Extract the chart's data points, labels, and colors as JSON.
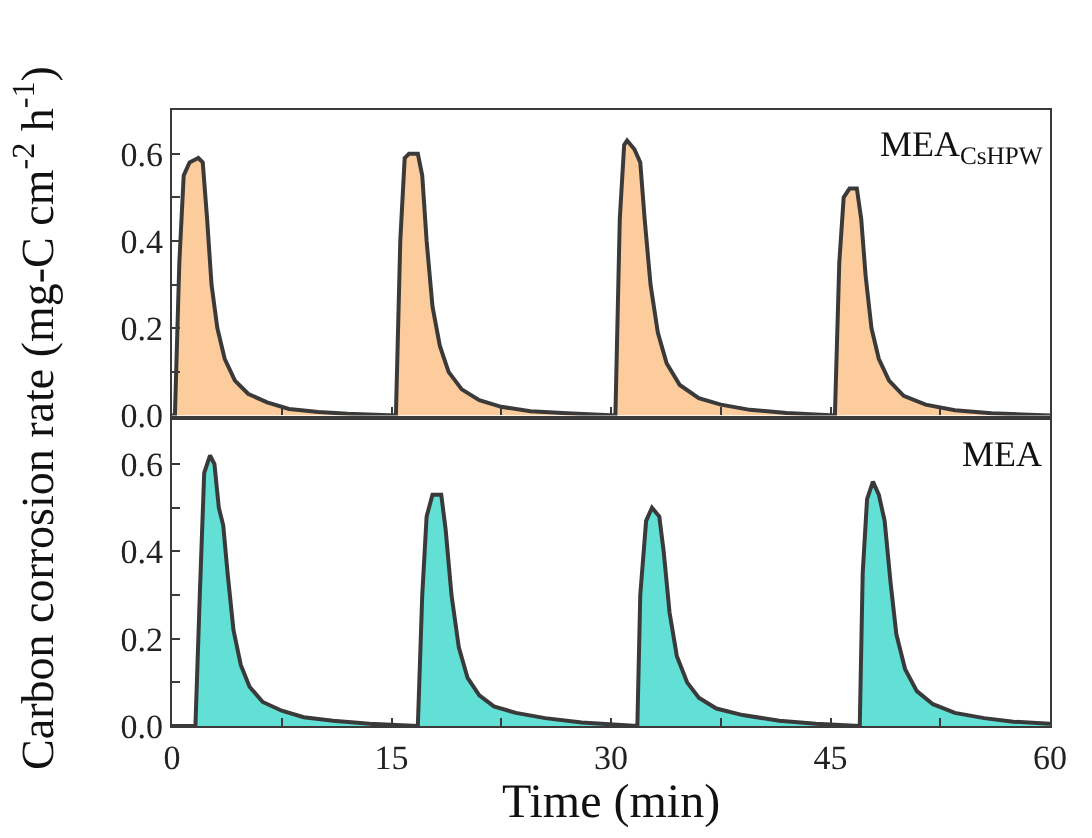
{
  "chart_data": [
    {
      "type": "area",
      "ylabel": "Carbon corrosion rate (mg-C cm$^{-2}$ h$^{-1}$)",
      "annotations": [
        "MEA$_{CsHPW}$"
      ],
      "xlim": [
        0,
        60
      ],
      "xticks": [
        0,
        {
          "value": 7.5,
          "label": null
        },
        15,
        {
          "value": 22.5,
          "label": null
        },
        30,
        {
          "value": 37.5,
          "label": null
        },
        45,
        {
          "value": 52.5,
          "label": null
        },
        60
      ],
      "ylim": [
        0,
        0.7
      ],
      "yticks": [
        {
          "value": 0,
          "label": "0.0"
        },
        {
          "value": 0.1,
          "label": null
        },
        {
          "value": 0.2,
          "label": "0.2"
        },
        {
          "value": 0.3,
          "label": null
        },
        {
          "value": 0.4,
          "label": "0.4"
        },
        {
          "value": 0.5,
          "label": null
        },
        {
          "value": 0.6,
          "label": "0.6"
        }
      ],
      "tick_labels": "y",
      "series": [
        {
          "color": "#fdcc9c",
          "x": [
            0,
            0.2,
            0.5,
            0.8,
            1.2,
            1.8,
            2.1,
            2.4,
            2.7,
            3.1,
            3.6,
            4.3,
            5.2,
            6.5,
            8,
            10,
            12,
            15.3,
            15.6,
            15.9,
            16.2,
            16.8,
            17.1,
            17.4,
            17.8,
            18.3,
            18.9,
            19.8,
            21,
            22.5,
            24.5,
            27,
            30.3,
            30.6,
            30.9,
            31.1,
            31.6,
            32,
            32.3,
            32.7,
            33.2,
            33.8,
            34.7,
            36,
            37.5,
            39.5,
            42,
            45.3,
            45.6,
            45.9,
            46.3,
            46.8,
            47.1,
            47.4,
            47.8,
            48.3,
            49,
            50,
            51.5,
            53.5,
            56,
            60
          ],
          "values": [
            0,
            0,
            0.35,
            0.55,
            0.58,
            0.59,
            0.58,
            0.45,
            0.3,
            0.2,
            0.13,
            0.08,
            0.05,
            0.03,
            0.015,
            0.008,
            0.004,
            0,
            0.4,
            0.59,
            0.6,
            0.6,
            0.55,
            0.4,
            0.25,
            0.16,
            0.1,
            0.06,
            0.035,
            0.02,
            0.01,
            0.005,
            0,
            0.45,
            0.62,
            0.63,
            0.61,
            0.58,
            0.45,
            0.3,
            0.19,
            0.12,
            0.07,
            0.04,
            0.025,
            0.013,
            0.006,
            0,
            0.35,
            0.5,
            0.52,
            0.52,
            0.45,
            0.32,
            0.2,
            0.13,
            0.08,
            0.045,
            0.025,
            0.012,
            0.005,
            0
          ]
        }
      ]
    },
    {
      "type": "area",
      "xlabel": "Time (min)",
      "annotations": [
        "MEA"
      ],
      "xlim": [
        0,
        60
      ],
      "xticks": [
        0,
        {
          "value": 7.5,
          "label": null
        },
        15,
        {
          "value": 22.5,
          "label": null
        },
        30,
        {
          "value": 37.5,
          "label": null
        },
        45,
        {
          "value": 52.5,
          "label": null
        },
        60
      ],
      "ylim": [
        0,
        0.7
      ],
      "yticks": [
        {
          "value": 0,
          "label": "0.0"
        },
        {
          "value": 0.1,
          "label": null
        },
        {
          "value": 0.2,
          "label": "0.2"
        },
        {
          "value": 0.3,
          "label": null
        },
        {
          "value": 0.4,
          "label": "0.4"
        },
        {
          "value": 0.5,
          "label": null
        },
        {
          "value": 0.6,
          "label": "0.6"
        }
      ],
      "series": [
        {
          "color": "#62e0d6",
          "x": [
            0,
            1.6,
            1.9,
            2.2,
            2.6,
            2.9,
            3.2,
            3.5,
            3.8,
            4.2,
            4.7,
            5.3,
            6.2,
            7.5,
            9,
            11,
            13.5,
            16.8,
            17.1,
            17.4,
            17.8,
            18.4,
            18.7,
            19.1,
            19.6,
            20.2,
            21,
            22,
            23.5,
            25.5,
            28,
            31.8,
            32.0,
            32.4,
            32.8,
            33.3,
            33.6,
            34,
            34.5,
            35.2,
            36,
            37.2,
            39,
            41.5,
            44,
            47,
            47.2,
            47.5,
            47.9,
            48.3,
            48.7,
            49.1,
            49.5,
            50.1,
            50.9,
            52,
            53.5,
            55.5,
            57.5,
            60
          ],
          "values": [
            0,
            0,
            0.3,
            0.58,
            0.62,
            0.6,
            0.5,
            0.46,
            0.35,
            0.22,
            0.14,
            0.09,
            0.055,
            0.035,
            0.02,
            0.012,
            0.005,
            0,
            0.3,
            0.48,
            0.53,
            0.53,
            0.45,
            0.3,
            0.18,
            0.11,
            0.07,
            0.045,
            0.03,
            0.018,
            0.008,
            0,
            0.3,
            0.47,
            0.5,
            0.48,
            0.4,
            0.26,
            0.16,
            0.1,
            0.065,
            0.04,
            0.025,
            0.012,
            0.005,
            0,
            0.35,
            0.52,
            0.56,
            0.53,
            0.47,
            0.33,
            0.21,
            0.13,
            0.08,
            0.05,
            0.03,
            0.018,
            0.01,
            0.005
          ]
        }
      ]
    }
  ]
}
